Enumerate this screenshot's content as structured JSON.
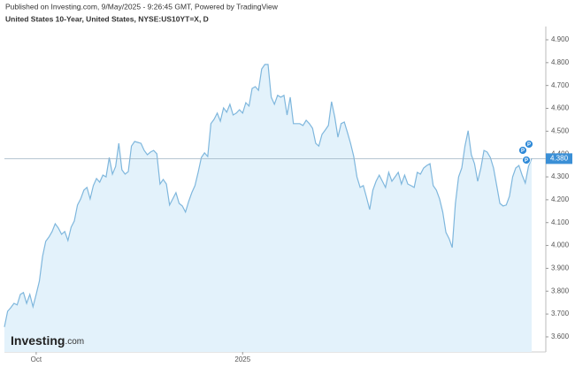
{
  "header": {
    "published": "Published on Investing.com, 9/May/2025 - 9:26:45 GMT, Powered by TradingView",
    "symbol": "United States 10-Year, United States, NYSE:US10YT=X, D"
  },
  "logo": "Investing",
  "logo_suffix": ".com",
  "chart_data": {
    "type": "area",
    "color": "#7fb7dd",
    "fill": "#e3f2fb",
    "categories": [
      null,
      null,
      null,
      null,
      null,
      null,
      null,
      null,
      null,
      null,
      "Oct",
      null,
      null,
      null,
      null,
      null,
      null,
      null,
      null,
      null,
      null,
      null,
      null,
      null,
      null,
      null,
      null,
      null,
      null,
      null,
      null,
      null,
      null,
      null,
      null,
      null,
      null,
      null,
      null,
      null,
      null,
      null,
      null,
      null,
      null,
      null,
      null,
      null,
      null,
      null,
      null,
      null,
      null,
      null,
      null,
      null,
      null,
      null,
      null,
      null,
      null,
      null,
      null,
      null,
      null,
      null,
      null,
      null,
      null,
      null,
      null,
      null,
      null,
      null,
      null,
      "2025",
      null,
      null,
      null,
      null,
      null,
      null,
      null,
      null,
      null,
      null,
      null,
      null,
      null,
      null,
      null,
      null,
      null,
      null,
      null,
      null,
      null,
      null,
      null,
      null,
      null,
      null,
      null,
      null,
      null,
      null,
      null,
      null,
      null,
      null,
      null,
      null,
      null,
      null,
      null,
      null,
      null,
      null,
      null,
      null,
      null,
      null,
      null,
      null,
      null,
      null,
      null,
      null,
      null,
      null,
      null,
      null,
      null,
      null,
      null,
      null,
      null,
      null,
      null,
      null,
      null,
      null,
      null,
      null,
      null,
      null,
      null,
      null,
      null,
      null,
      null,
      null,
      null,
      null,
      null,
      null,
      null,
      null,
      null,
      null,
      null,
      null,
      null,
      null,
      null,
      null,
      null
    ],
    "values": [
      3.643,
      3.712,
      3.728,
      3.747,
      3.74,
      3.786,
      3.794,
      3.747,
      3.786,
      3.732,
      3.786,
      3.844,
      3.952,
      4.018,
      4.037,
      4.061,
      4.095,
      4.076,
      4.049,
      4.061,
      4.022,
      4.08,
      4.107,
      4.177,
      4.204,
      4.242,
      4.254,
      4.204,
      4.262,
      4.293,
      4.277,
      4.308,
      4.3,
      4.385,
      4.312,
      4.346,
      4.447,
      4.331,
      4.312,
      4.323,
      4.435,
      4.455,
      4.451,
      4.447,
      4.416,
      4.397,
      4.409,
      4.416,
      4.401,
      4.269,
      4.289,
      4.269,
      4.177,
      4.204,
      4.231,
      4.184,
      4.173,
      4.146,
      4.192,
      4.231,
      4.262,
      4.32,
      4.385,
      4.405,
      4.389,
      4.533,
      4.552,
      4.579,
      4.544,
      4.602,
      4.583,
      4.618,
      4.571,
      4.579,
      4.594,
      4.579,
      4.625,
      4.61,
      4.687,
      4.695,
      4.679,
      4.772,
      4.792,
      4.792,
      4.649,
      4.618,
      4.657,
      4.649,
      4.657,
      4.571,
      4.649,
      4.533,
      4.533,
      4.533,
      4.525,
      4.548,
      4.533,
      4.513,
      4.447,
      4.435,
      4.486,
      4.505,
      4.525,
      4.629,
      4.563,
      4.474,
      4.533,
      4.54,
      4.494,
      4.447,
      4.389,
      4.3,
      4.254,
      4.262,
      4.211,
      4.157,
      4.242,
      4.281,
      4.308,
      4.281,
      4.254,
      4.32,
      4.281,
      4.3,
      4.32,
      4.269,
      4.308,
      4.269,
      4.262,
      4.254,
      4.32,
      4.312,
      4.339,
      4.35,
      4.358,
      4.262,
      4.242,
      4.204,
      4.146,
      4.057,
      4.03,
      3.991,
      4.184,
      4.3,
      4.339,
      4.435,
      4.502,
      4.397,
      4.358,
      4.281,
      4.339,
      4.416,
      4.409,
      4.385,
      4.339,
      4.262,
      4.184,
      4.173,
      4.177,
      4.215,
      4.3,
      4.339,
      4.35,
      4.308,
      4.273,
      4.346,
      4.38
    ],
    "ylim": [
      3.534,
      4.958
    ],
    "yticks": [
      {
        "value": 3.6,
        "label": "3.600"
      },
      {
        "value": 3.7,
        "label": "3.700"
      },
      {
        "value": 3.8,
        "label": "3.800"
      },
      {
        "value": 3.9,
        "label": "3.900"
      },
      {
        "value": 4.0,
        "label": "4.000"
      },
      {
        "value": 4.1,
        "label": "4.100"
      },
      {
        "value": 4.2,
        "label": "4.200"
      },
      {
        "value": 4.3,
        "label": "4.300"
      },
      {
        "value": 4.4,
        "label": "4.400"
      },
      {
        "value": 4.5,
        "label": "4.500"
      },
      {
        "value": 4.6,
        "label": "4.600"
      },
      {
        "value": 4.7,
        "label": "4.700"
      },
      {
        "value": 4.8,
        "label": "4.800"
      },
      {
        "value": 4.9,
        "label": "4.900"
      }
    ],
    "price_line": {
      "value": 4.38,
      "label": "4.380"
    },
    "event_markers": [
      "P",
      "P",
      "P"
    ]
  }
}
